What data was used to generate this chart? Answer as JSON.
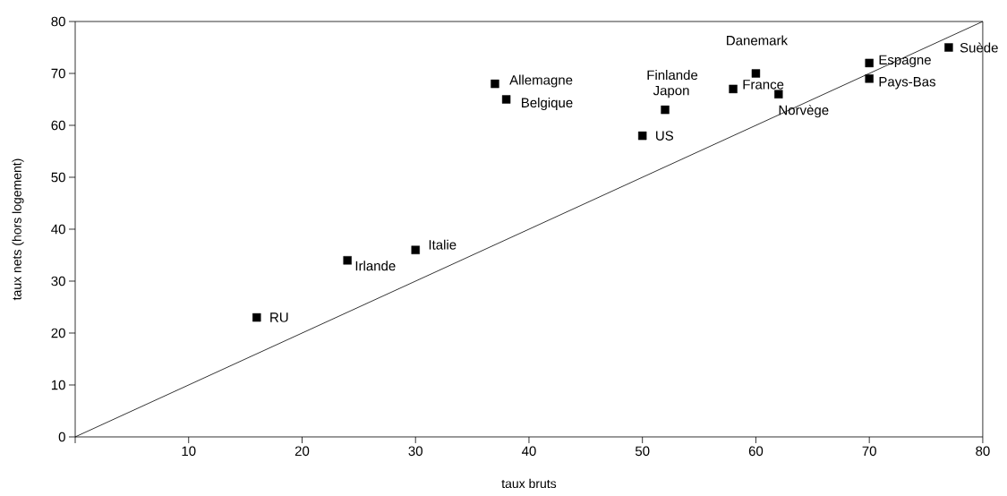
{
  "chart_data": {
    "type": "scatter",
    "xlabel": "taux bruts",
    "ylabel": "taux nets (hors logement)",
    "xlim": [
      0,
      80
    ],
    "ylim": [
      0,
      80
    ],
    "xticks": [
      {
        "value": 0,
        "label": null
      },
      10,
      20,
      30,
      40,
      50,
      60,
      70,
      80
    ],
    "yticks": [
      0,
      10,
      20,
      30,
      40,
      50,
      60,
      70,
      80
    ],
    "series": [
      {
        "marker": "square",
        "color": "#000000",
        "x": [
          16,
          24,
          30,
          37,
          38,
          52,
          50,
          58,
          60,
          62,
          70,
          70,
          77
        ],
        "values": [
          23,
          34,
          36,
          68,
          65,
          63,
          58,
          67,
          70,
          66,
          72,
          69,
          75
        ]
      },
      {
        "type": "line",
        "marker": "none",
        "line_style": "solid",
        "color": "#000000",
        "x": [
          0,
          80
        ],
        "values": [
          0,
          80
        ]
      }
    ],
    "annotations": [
      {
        "text": "RU",
        "x": 16,
        "y": 23
      },
      {
        "text": "Irlande",
        "x": 24,
        "y": 34
      },
      {
        "text": "Italie",
        "x": 30,
        "y": 36
      },
      {
        "text": "Allemagne",
        "x": 37,
        "y": 68
      },
      {
        "text": "Belgique",
        "x": 38,
        "y": 65
      },
      {
        "text": "Finlande",
        "x": 52,
        "y": 63
      },
      {
        "text": "Japon",
        "x": 52,
        "y": 63
      },
      {
        "text": "US",
        "x": 50,
        "y": 58
      },
      {
        "text": "France",
        "x": 58,
        "y": 67
      },
      {
        "text": "Danemark",
        "x": 60,
        "y": 70
      },
      {
        "text": "Norvège",
        "x": 62,
        "y": 66
      },
      {
        "text": "Espagne",
        "x": 70,
        "y": 72
      },
      {
        "text": "Pays-Bas",
        "x": 70,
        "y": 69
      },
      {
        "text": "Suède",
        "x": 77,
        "y": 75
      }
    ]
  }
}
